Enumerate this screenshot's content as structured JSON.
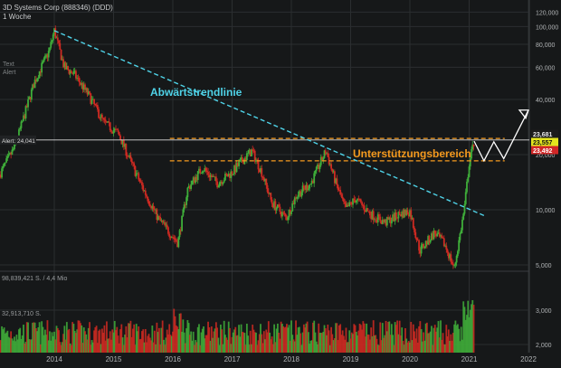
{
  "header": {
    "title": "3D Systems Corp (888346) (DDD)",
    "interval": "1 Woche"
  },
  "side_labels": {
    "text": "Text",
    "alert": "Alert"
  },
  "alert_tag": "Alert: 24,041",
  "volume_labels": {
    "vol1": "98,839,421 S. / 4,4 Mio",
    "vol2": "32,913,710 S."
  },
  "colors": {
    "background": "#161819",
    "up": "#3fae3a",
    "down": "#d02a22",
    "trendline": "#4fd3e8",
    "support": "#f59a1e",
    "grid": "#2b2e30",
    "axis_text": "#b0b3b5"
  },
  "chart_data": {
    "type": "candlestick",
    "x_ticks": [
      "2014",
      "2015",
      "2016",
      "2017",
      "2018",
      "2019",
      "2020",
      "2021",
      "2022"
    ],
    "y_scale": "log",
    "y_ticks": [
      "120,000",
      "100,000",
      "80,000",
      "60,000",
      "40,000",
      "20,000",
      "10,000",
      "5,000"
    ],
    "volume_y_ticks": [
      "3,000",
      "2,000"
    ],
    "price_tags": [
      {
        "label": "23,681",
        "color": "#1c1c1c",
        "text_color": "#e8e8e8"
      },
      {
        "label": "23,557",
        "color": "#e3e51e",
        "text_color": "#111111"
      },
      {
        "label": "23,492",
        "color": "#d12727",
        "text_color": "#ffffff"
      }
    ],
    "annotations": [
      {
        "text": "Abwärtstrendlinie",
        "color": "#4fd3e8"
      },
      {
        "text": "Unterstützungsbereich",
        "color": "#f59a1e"
      }
    ],
    "trendline": {
      "from": [
        "2014-01",
        95.0
      ],
      "to": [
        "2021-04",
        9.3
      ]
    },
    "support_zone": {
      "upper": 24.5,
      "lower": 18.5
    },
    "alert_level": 24.041,
    "price_path": [
      [
        "2013-01",
        14.0
      ],
      [
        "2013-05",
        22.0
      ],
      [
        "2013-09",
        50.0
      ],
      [
        "2013-12",
        74.0
      ],
      [
        "2014-01",
        95.0
      ],
      [
        "2014-03",
        60.0
      ],
      [
        "2014-05",
        55.0
      ],
      [
        "2014-08",
        42.0
      ],
      [
        "2014-11",
        30.0
      ],
      [
        "2015-02",
        26.0
      ],
      [
        "2015-05",
        17.0
      ],
      [
        "2015-07",
        13.0
      ],
      [
        "2015-10",
        9.0
      ],
      [
        "2016-02",
        6.6
      ],
      [
        "2016-04",
        13.0
      ],
      [
        "2016-07",
        17.0
      ],
      [
        "2016-10",
        14.0
      ],
      [
        "2017-01",
        16.0
      ],
      [
        "2017-03",
        18.5
      ],
      [
        "2017-05",
        21.0
      ],
      [
        "2017-07",
        16.0
      ],
      [
        "2017-09",
        11.0
      ],
      [
        "2017-12",
        9.0
      ],
      [
        "2018-02",
        12.0
      ],
      [
        "2018-05",
        14.0
      ],
      [
        "2018-08",
        21.0
      ],
      [
        "2018-10",
        14.0
      ],
      [
        "2018-12",
        10.0
      ],
      [
        "2019-02",
        11.5
      ],
      [
        "2019-05",
        9.5
      ],
      [
        "2019-08",
        8.5
      ],
      [
        "2019-11",
        9.5
      ],
      [
        "2020-01",
        9.8
      ],
      [
        "2020-03",
        6.0
      ],
      [
        "2020-06",
        7.5
      ],
      [
        "2020-08",
        6.5
      ],
      [
        "2020-10",
        4.8
      ],
      [
        "2020-12",
        10.0
      ],
      [
        "2021-01",
        18.0
      ],
      [
        "2021-02",
        23.681
      ]
    ],
    "projection": [
      [
        "2021-02",
        23.681
      ],
      [
        "2021-04",
        18.5
      ],
      [
        "2021-06",
        23.5
      ],
      [
        "2021-08",
        19.0
      ],
      [
        "2022-01",
        35.0
      ]
    ]
  }
}
